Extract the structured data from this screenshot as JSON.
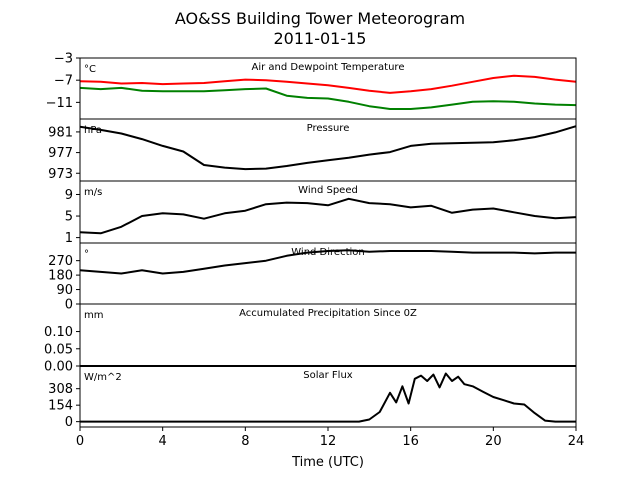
{
  "figure": {
    "title_line1": "AO&SS Building Tower Meteorogram",
    "title_line2": "2011-01-15",
    "xlabel": "Time (UTC)",
    "x_ticks": [
      0,
      4,
      8,
      12,
      16,
      20,
      24
    ],
    "x_range": [
      0,
      24
    ]
  },
  "chart_data": [
    {
      "type": "line",
      "title": "Air and Dewpoint Temperature",
      "unit": "°C",
      "ylim": [
        -14,
        -3
      ],
      "y_ticks": [
        -3,
        -7,
        -11
      ],
      "y_tick_labels": [
        "−3",
        "−7",
        "−11"
      ],
      "series": [
        {
          "color": "#ff0000",
          "x": [
            0,
            1,
            2,
            3,
            4,
            5,
            6,
            7,
            8,
            9,
            10,
            11,
            12,
            13,
            14,
            15,
            16,
            17,
            18,
            19,
            20,
            21,
            22,
            23,
            24
          ],
          "y": [
            -7.2,
            -7.3,
            -7.6,
            -7.5,
            -7.7,
            -7.6,
            -7.5,
            -7.2,
            -6.9,
            -7.0,
            -7.3,
            -7.6,
            -7.9,
            -8.4,
            -8.9,
            -9.3,
            -9.0,
            -8.6,
            -8.0,
            -7.3,
            -6.6,
            -6.2,
            -6.4,
            -6.9,
            -7.3
          ]
        },
        {
          "color": "#008000",
          "x": [
            0,
            1,
            2,
            3,
            4,
            5,
            6,
            7,
            8,
            9,
            10,
            11,
            12,
            13,
            14,
            15,
            16,
            17,
            18,
            19,
            20,
            21,
            22,
            23,
            24
          ],
          "y": [
            -8.4,
            -8.6,
            -8.4,
            -8.9,
            -9.0,
            -9.0,
            -9.0,
            -8.8,
            -8.6,
            -8.5,
            -9.8,
            -10.2,
            -10.3,
            -10.9,
            -11.7,
            -12.2,
            -12.2,
            -11.9,
            -11.4,
            -10.9,
            -10.8,
            -10.9,
            -11.2,
            -11.4,
            -11.5
          ]
        }
      ]
    },
    {
      "type": "line",
      "title": "Pressure",
      "unit": "hPa",
      "ylim": [
        971.5,
        983.5
      ],
      "y_ticks": [
        981,
        977,
        973
      ],
      "y_tick_labels": [
        "981",
        "977",
        "973"
      ],
      "series": [
        {
          "color": "#000000",
          "x": [
            0,
            1,
            2,
            3,
            4,
            5,
            6,
            7,
            8,
            9,
            10,
            11,
            12,
            13,
            14,
            15,
            16,
            17,
            18,
            19,
            20,
            21,
            22,
            23,
            24
          ],
          "y": [
            982.0,
            981.4,
            980.7,
            979.6,
            978.3,
            977.2,
            974.6,
            974.1,
            973.8,
            973.9,
            974.4,
            975.0,
            975.5,
            976.0,
            976.6,
            977.1,
            978.3,
            978.7,
            978.8,
            978.9,
            979.0,
            979.4,
            980.0,
            980.9,
            982.1
          ]
        }
      ]
    },
    {
      "type": "line",
      "title": "Wind Speed",
      "unit": "m/s",
      "ylim": [
        0,
        11.5
      ],
      "y_ticks": [
        9,
        5,
        1
      ],
      "y_tick_labels": [
        "9",
        "5",
        "1"
      ],
      "series": [
        {
          "color": "#000000",
          "x": [
            0,
            1,
            2,
            3,
            4,
            5,
            6,
            7,
            8,
            9,
            10,
            11,
            12,
            13,
            14,
            15,
            16,
            17,
            18,
            19,
            20,
            21,
            22,
            23,
            24
          ],
          "y": [
            2.0,
            1.8,
            3.0,
            5.0,
            5.5,
            5.3,
            4.5,
            5.5,
            6.0,
            7.2,
            7.5,
            7.4,
            7.0,
            8.2,
            7.4,
            7.2,
            6.6,
            6.9,
            5.6,
            6.2,
            6.4,
            5.7,
            5.0,
            4.6,
            4.8
          ]
        }
      ]
    },
    {
      "type": "line",
      "title": "Wind Direction",
      "unit": "°",
      "ylim": [
        0,
        380
      ],
      "y_ticks": [
        270,
        180,
        90,
        0
      ],
      "y_tick_labels": [
        "270",
        "180",
        "90",
        "0"
      ],
      "series": [
        {
          "color": "#000000",
          "x": [
            0,
            1,
            2,
            3,
            4,
            5,
            6,
            7,
            8,
            9,
            10,
            11,
            12,
            13,
            14,
            15,
            16,
            17,
            18,
            19,
            20,
            21,
            22,
            23,
            24
          ],
          "y": [
            210,
            200,
            190,
            210,
            190,
            200,
            220,
            240,
            255,
            270,
            300,
            320,
            330,
            335,
            325,
            330,
            330,
            330,
            325,
            320,
            320,
            320,
            315,
            320,
            320
          ]
        }
      ]
    },
    {
      "type": "line",
      "title": "Accumulated Precipitation Since 0Z",
      "unit": "mm",
      "ylim": [
        0,
        0.18
      ],
      "y_ticks": [
        0.1,
        0.05,
        0.0
      ],
      "y_tick_labels": [
        "0.10",
        "0.05",
        "0.00"
      ],
      "series": [
        {
          "color": "#000000",
          "x": [
            0,
            24
          ],
          "y": [
            0,
            0
          ]
        }
      ]
    },
    {
      "type": "line",
      "title": "Solar Flux",
      "unit": "W/m^2",
      "ylim": [
        -50,
        520
      ],
      "y_ticks": [
        308,
        154,
        0
      ],
      "y_tick_labels": [
        "308",
        "154",
        "0"
      ],
      "series": [
        {
          "color": "#000000",
          "x": [
            0,
            13.5,
            14,
            14.5,
            15,
            15.3,
            15.6,
            15.9,
            16.2,
            16.5,
            16.8,
            17.1,
            17.4,
            17.7,
            18,
            18.3,
            18.6,
            19,
            19.5,
            20,
            20.5,
            21,
            21.5,
            22,
            22.5,
            23,
            24
          ],
          "y": [
            0,
            0,
            20,
            90,
            270,
            180,
            330,
            170,
            400,
            430,
            380,
            440,
            320,
            450,
            380,
            420,
            350,
            330,
            280,
            230,
            200,
            170,
            160,
            80,
            10,
            0,
            0
          ]
        }
      ]
    }
  ]
}
